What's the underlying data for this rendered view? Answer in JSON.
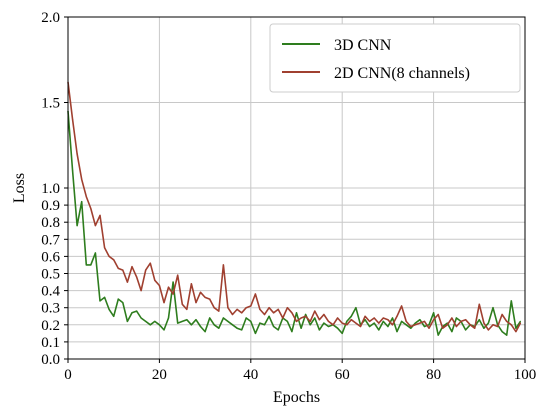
{
  "chart_data": {
    "type": "line",
    "title": "",
    "xlabel": "Epochs",
    "ylabel": "Loss",
    "xlim": [
      0,
      100
    ],
    "ylim": [
      0,
      2.0
    ],
    "grid": true,
    "legend_position": "top-right",
    "x_ticks": [
      {
        "value": 0,
        "label": "0"
      },
      {
        "value": 20,
        "label": "20"
      },
      {
        "value": 40,
        "label": "40"
      },
      {
        "value": 60,
        "label": "60"
      },
      {
        "value": 80,
        "label": "80"
      },
      {
        "value": 100,
        "label": "100"
      }
    ],
    "y_ticks": [
      {
        "value": 0.0,
        "label": "0.0"
      },
      {
        "value": 0.1,
        "label": "0.1"
      },
      {
        "value": 0.2,
        "label": "0.2"
      },
      {
        "value": 0.3,
        "label": "0.3"
      },
      {
        "value": 0.4,
        "label": "0.4"
      },
      {
        "value": 0.5,
        "label": "0.5"
      },
      {
        "value": 0.6,
        "label": "0.6"
      },
      {
        "value": 0.7,
        "label": "0.7"
      },
      {
        "value": 0.8,
        "label": "0.8"
      },
      {
        "value": 0.9,
        "label": "0.9"
      },
      {
        "value": 1.0,
        "label": "1.0"
      },
      {
        "value": 1.5,
        "label": "1.5"
      },
      {
        "value": 2.0,
        "label": "2.0"
      }
    ],
    "series": [
      {
        "name": "3D CNN",
        "color": "#2e7d1e",
        "x": [
          0,
          1,
          2,
          3,
          4,
          5,
          6,
          7,
          8,
          9,
          10,
          11,
          12,
          13,
          14,
          15,
          16,
          17,
          18,
          19,
          20,
          21,
          22,
          23,
          24,
          25,
          26,
          27,
          28,
          29,
          30,
          31,
          32,
          33,
          34,
          35,
          36,
          37,
          38,
          39,
          40,
          41,
          42,
          43,
          44,
          45,
          46,
          47,
          48,
          49,
          50,
          51,
          52,
          53,
          54,
          55,
          56,
          57,
          58,
          59,
          60,
          61,
          62,
          63,
          64,
          65,
          66,
          67,
          68,
          69,
          70,
          71,
          72,
          73,
          74,
          75,
          76,
          77,
          78,
          79,
          80,
          81,
          82,
          83,
          84,
          85,
          86,
          87,
          88,
          89,
          90,
          91,
          92,
          93,
          94,
          95,
          96,
          97,
          98,
          99
        ],
        "values": [
          1.45,
          1.1,
          0.78,
          0.92,
          0.55,
          0.55,
          0.62,
          0.34,
          0.36,
          0.29,
          0.25,
          0.35,
          0.33,
          0.22,
          0.27,
          0.28,
          0.24,
          0.22,
          0.2,
          0.22,
          0.2,
          0.17,
          0.24,
          0.45,
          0.21,
          0.22,
          0.23,
          0.2,
          0.23,
          0.19,
          0.16,
          0.24,
          0.2,
          0.18,
          0.24,
          0.22,
          0.2,
          0.18,
          0.17,
          0.24,
          0.22,
          0.15,
          0.21,
          0.2,
          0.25,
          0.19,
          0.17,
          0.24,
          0.22,
          0.16,
          0.27,
          0.18,
          0.26,
          0.2,
          0.24,
          0.17,
          0.21,
          0.19,
          0.2,
          0.18,
          0.15,
          0.22,
          0.25,
          0.3,
          0.2,
          0.23,
          0.19,
          0.21,
          0.17,
          0.22,
          0.19,
          0.24,
          0.16,
          0.22,
          0.2,
          0.18,
          0.21,
          0.23,
          0.19,
          0.2,
          0.27,
          0.14,
          0.19,
          0.21,
          0.16,
          0.24,
          0.22,
          0.17,
          0.2,
          0.19,
          0.23,
          0.18,
          0.21,
          0.3,
          0.2,
          0.16,
          0.14,
          0.34,
          0.18,
          0.22
        ]
      },
      {
        "name": "2D CNN(8 channels)",
        "color": "#a04030",
        "x": [
          0,
          1,
          2,
          3,
          4,
          5,
          6,
          7,
          8,
          9,
          10,
          11,
          12,
          13,
          14,
          15,
          16,
          17,
          18,
          19,
          20,
          21,
          22,
          23,
          24,
          25,
          26,
          27,
          28,
          29,
          30,
          31,
          32,
          33,
          34,
          35,
          36,
          37,
          38,
          39,
          40,
          41,
          42,
          43,
          44,
          45,
          46,
          47,
          48,
          49,
          50,
          51,
          52,
          53,
          54,
          55,
          56,
          57,
          58,
          59,
          60,
          61,
          62,
          63,
          64,
          65,
          66,
          67,
          68,
          69,
          70,
          71,
          72,
          73,
          74,
          75,
          76,
          77,
          78,
          79,
          80,
          81,
          82,
          83,
          84,
          85,
          86,
          87,
          88,
          89,
          90,
          91,
          92,
          93,
          94,
          95,
          96,
          97,
          98,
          99
        ],
        "values": [
          1.62,
          1.4,
          1.2,
          1.05,
          0.95,
          0.88,
          0.78,
          0.84,
          0.65,
          0.6,
          0.58,
          0.53,
          0.52,
          0.45,
          0.54,
          0.48,
          0.4,
          0.52,
          0.56,
          0.46,
          0.43,
          0.33,
          0.42,
          0.38,
          0.49,
          0.32,
          0.29,
          0.44,
          0.33,
          0.39,
          0.36,
          0.35,
          0.3,
          0.28,
          0.55,
          0.3,
          0.26,
          0.29,
          0.27,
          0.3,
          0.31,
          0.38,
          0.29,
          0.26,
          0.3,
          0.27,
          0.29,
          0.24,
          0.3,
          0.27,
          0.22,
          0.24,
          0.25,
          0.22,
          0.28,
          0.23,
          0.26,
          0.22,
          0.2,
          0.24,
          0.21,
          0.2,
          0.23,
          0.21,
          0.19,
          0.25,
          0.22,
          0.24,
          0.21,
          0.24,
          0.23,
          0.2,
          0.25,
          0.31,
          0.22,
          0.19,
          0.2,
          0.21,
          0.22,
          0.18,
          0.23,
          0.26,
          0.18,
          0.2,
          0.24,
          0.19,
          0.22,
          0.23,
          0.2,
          0.18,
          0.32,
          0.21,
          0.17,
          0.2,
          0.19,
          0.26,
          0.22,
          0.2,
          0.16,
          0.21
        ]
      }
    ]
  }
}
